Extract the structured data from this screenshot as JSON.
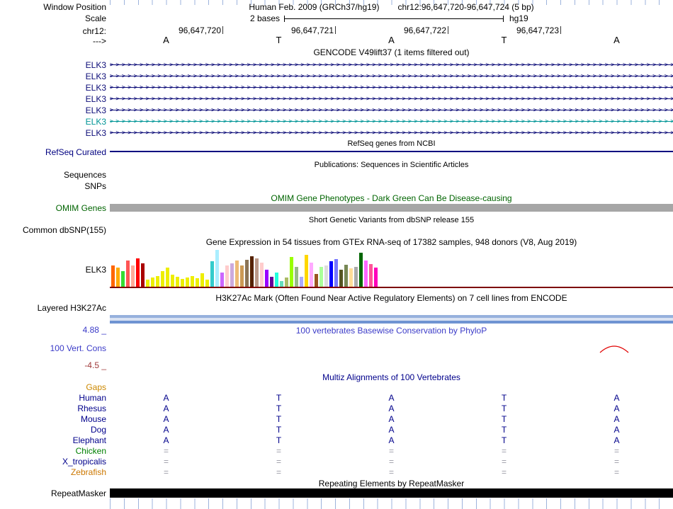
{
  "ruler": {
    "tick_color": "#9db3dc"
  },
  "header": {
    "window_position_label": "Window Position",
    "assembly": "Human Feb. 2009 (GRCh37/hg19)",
    "position": "chr12:96,647,720-96,647,724 (5 bp)",
    "scale_label": "Scale",
    "scale_value": "2 bases",
    "assembly_short": "hg19",
    "chrom_label": "chr12:",
    "direction_label": "--->",
    "coordinates": [
      "96,647,720",
      "96,647,721",
      "96,647,722",
      "96,647,723"
    ],
    "ref_bases": [
      "A",
      "T",
      "A",
      "T",
      "A"
    ]
  },
  "gencode": {
    "title": "GENCODE V49lift37 (1 items filtered out)",
    "arrow_char": ">",
    "rows": [
      {
        "label": "ELK3",
        "color": "#0c0c78"
      },
      {
        "label": "ELK3",
        "color": "#0c0c78"
      },
      {
        "label": "ELK3",
        "color": "#0c0c78"
      },
      {
        "label": "ELK3",
        "color": "#0c0c78"
      },
      {
        "label": "ELK3",
        "color": "#0c0c78"
      },
      {
        "label": "ELK3",
        "color": "#009596"
      },
      {
        "label": "ELK3",
        "color": "#0c0c78"
      }
    ]
  },
  "refseq": {
    "center_title": "RefSeq genes from NCBI",
    "label": "RefSeq Curated",
    "color": "#000080"
  },
  "publications": {
    "center_title": "Publications: Sequences in Scientific Articles",
    "sequences_label": "Sequences",
    "snps_label": "SNPs"
  },
  "omim": {
    "center_title": "OMIM Gene Phenotypes - Dark Green Can Be Disease-causing",
    "label": "OMIM Genes",
    "title_color": "#006400",
    "bar_color": "#a6a6a6"
  },
  "dbsnp": {
    "center_title": "Short Genetic Variants from dbSNP release 155",
    "label": "Common dbSNP(155)"
  },
  "gtex": {
    "center_title": "Gene Expression in 54 tissues from GTEx RNA-seq of 17382 samples, 948 donors (V8, Aug 2019)",
    "label": "ELK3",
    "baseline_color": "#7d0000",
    "bars": [
      {
        "c": "#FF6600",
        "h": 30
      },
      {
        "c": "#FFAA00",
        "h": 27
      },
      {
        "c": "#33DD33",
        "h": 22
      },
      {
        "c": "#FF5555",
        "h": 37
      },
      {
        "c": "#FFAA99",
        "h": 30
      },
      {
        "c": "#FF0000",
        "h": 40
      },
      {
        "c": "#AA0000",
        "h": 33
      },
      {
        "c": "#EEEE00",
        "h": 10
      },
      {
        "c": "#EEEE00",
        "h": 13
      },
      {
        "c": "#EEEE00",
        "h": 15
      },
      {
        "c": "#EEEE00",
        "h": 22
      },
      {
        "c": "#EEEE00",
        "h": 27
      },
      {
        "c": "#EEEE00",
        "h": 17
      },
      {
        "c": "#EEEE00",
        "h": 14
      },
      {
        "c": "#EEEE00",
        "h": 11
      },
      {
        "c": "#EEEE00",
        "h": 13
      },
      {
        "c": "#EEEE00",
        "h": 15
      },
      {
        "c": "#EEEE00",
        "h": 12
      },
      {
        "c": "#EEEE00",
        "h": 19
      },
      {
        "c": "#EEEE00",
        "h": 10
      },
      {
        "c": "#33CCCC",
        "h": 36
      },
      {
        "c": "#AAEEFF",
        "h": 52
      },
      {
        "c": "#CC66FF",
        "h": 20
      },
      {
        "c": "#FFCCCC",
        "h": 30
      },
      {
        "c": "#CCAADD",
        "h": 33
      },
      {
        "c": "#EEBB77",
        "h": 37
      },
      {
        "c": "#CC9955",
        "h": 30
      },
      {
        "c": "#8B7355",
        "h": 38
      },
      {
        "c": "#552200",
        "h": 43
      },
      {
        "c": "#BB9988",
        "h": 40
      },
      {
        "c": "#FFCCCC",
        "h": 34
      },
      {
        "c": "#9900FF",
        "h": 24
      },
      {
        "c": "#660099",
        "h": 14
      },
      {
        "c": "#22FFDD",
        "h": 20
      },
      {
        "c": "#66DDBB",
        "h": 8
      },
      {
        "c": "#AABB66",
        "h": 13
      },
      {
        "c": "#99FF00",
        "h": 42
      },
      {
        "c": "#99BB88",
        "h": 28
      },
      {
        "c": "#AAAAFF",
        "h": 14
      },
      {
        "c": "#FFD700",
        "h": 45
      },
      {
        "c": "#FFAAFF",
        "h": 34
      },
      {
        "c": "#995522",
        "h": 18
      },
      {
        "c": "#AAFF99",
        "h": 28
      },
      {
        "c": "#DDDDDD",
        "h": 30
      },
      {
        "c": "#0000FF",
        "h": 36
      },
      {
        "c": "#7777FF",
        "h": 39
      },
      {
        "c": "#555522",
        "h": 24
      },
      {
        "c": "#778855",
        "h": 31
      },
      {
        "c": "#FFDD99",
        "h": 26
      },
      {
        "c": "#AAAAAA",
        "h": 28
      },
      {
        "c": "#006600",
        "h": 48
      },
      {
        "c": "#FF66FF",
        "h": 37
      },
      {
        "c": "#FF5599",
        "h": 32
      },
      {
        "c": "#FF00BB",
        "h": 27
      }
    ]
  },
  "h3k27ac": {
    "center_title": "H3K27Ac Mark (Often Found Near Active Regulatory Elements) on 7 cell lines from ENCODE",
    "label": "Layered H3K27Ac",
    "band_colors": [
      "#96b1dd",
      "#d9e2f3",
      "#6f94d2"
    ]
  },
  "conservation": {
    "center_title": "100 vertebrates Basewise Conservation by PhyloP",
    "title_color": "#3b3bc8",
    "label": "100 Vert. Cons",
    "max_label": "4.88 _",
    "scale_color": "#3b3bc8",
    "min_label": "-4.5 _",
    "min_color": "#a03b3b",
    "peak_color": "#e10000"
  },
  "multiz": {
    "center_title": "Multiz Alignments of 100 Vertebrates",
    "title_color": "#00008b",
    "gaps_label": "Gaps",
    "gaps_color": "#cc8800",
    "base_color": "#00008b",
    "gap_char_color": "#9a9aa6",
    "species": [
      {
        "name": "Human",
        "color": "#00008b",
        "bases": [
          "A",
          "T",
          "A",
          "T",
          "A"
        ]
      },
      {
        "name": "Rhesus",
        "color": "#00008b",
        "bases": [
          "A",
          "T",
          "A",
          "T",
          "A"
        ]
      },
      {
        "name": "Mouse",
        "color": "#00008b",
        "bases": [
          "A",
          "T",
          "A",
          "T",
          "A"
        ]
      },
      {
        "name": "Dog",
        "color": "#00008b",
        "bases": [
          "A",
          "T",
          "A",
          "T",
          "A"
        ]
      },
      {
        "name": "Elephant",
        "color": "#00008b",
        "bases": [
          "A",
          "T",
          "A",
          "T",
          "A"
        ]
      },
      {
        "name": "Chicken",
        "color": "#008000",
        "bases": [
          "=",
          "=",
          "=",
          "=",
          "="
        ]
      },
      {
        "name": "X_tropicalis",
        "color": "#00008b",
        "bases": [
          "=",
          "=",
          "=",
          "=",
          "="
        ]
      },
      {
        "name": "Zebrafish",
        "color": "#cc7700",
        "bases": [
          "=",
          "=",
          "=",
          "=",
          "="
        ]
      }
    ]
  },
  "repeatmasker": {
    "center_title": "Repeating Elements by RepeatMasker",
    "label": "RepeatMasker",
    "bar_color": "#000000"
  }
}
